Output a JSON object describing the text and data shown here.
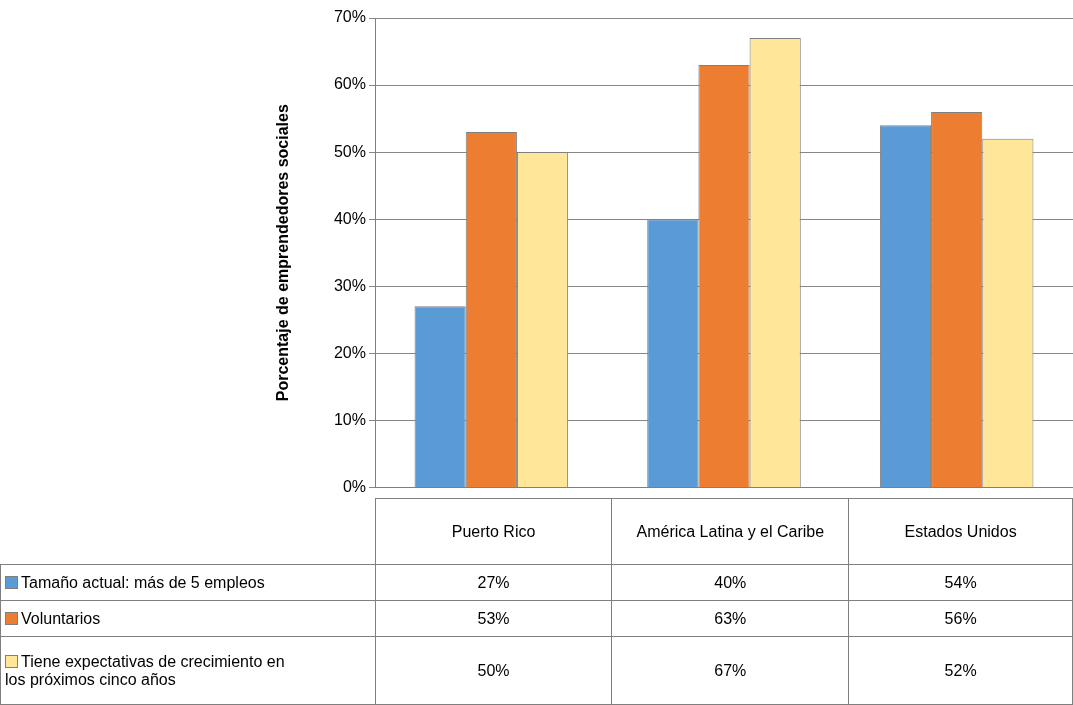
{
  "chart_data": {
    "type": "bar",
    "ylabel": "Porcentaje de emprendedores sociales",
    "categories": [
      "Puerto Rico",
      "América Latina y el Caribe",
      "Estados Unidos"
    ],
    "series": [
      {
        "name": "Tamaño actual: más de 5 empleos",
        "color": "#5b9bd5",
        "values": [
          27,
          40,
          54
        ],
        "value_labels": [
          "27%",
          "40%",
          "54%"
        ]
      },
      {
        "name": "Voluntarios",
        "color": "#ed7d31",
        "values": [
          53,
          63,
          56
        ],
        "value_labels": [
          "53%",
          "63%",
          "56%"
        ]
      },
      {
        "name": "Tiene expectativas de crecimiento en los próximos cinco años",
        "color": "#ffe699",
        "values": [
          50,
          67,
          52
        ],
        "value_labels": [
          "50%",
          "67%",
          "52%"
        ]
      }
    ],
    "ylim": [
      0,
      70
    ],
    "yticks": [
      {
        "value": 0,
        "label": "0%"
      },
      {
        "value": 10,
        "label": "10%"
      },
      {
        "value": 20,
        "label": "20%"
      },
      {
        "value": 30,
        "label": "30%"
      },
      {
        "value": 40,
        "label": "40%"
      },
      {
        "value": 50,
        "label": "50%"
      },
      {
        "value": 60,
        "label": "60%"
      },
      {
        "value": 70,
        "label": "70%"
      }
    ],
    "grid": "y",
    "legend": "bottom"
  }
}
